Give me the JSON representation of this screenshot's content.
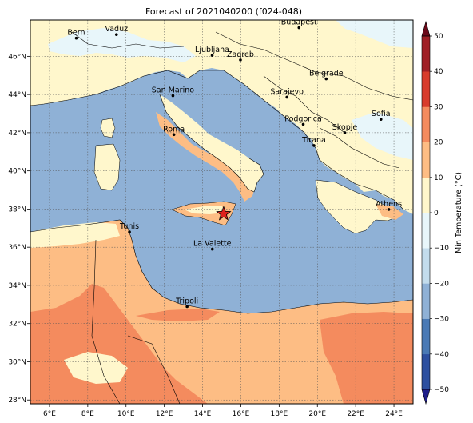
{
  "title": "Forecast of 2021040200 (f024-048)",
  "colorbar": {
    "label": "Min Temperature (°C)",
    "ticks": [
      "50",
      "40",
      "30",
      "20",
      "10",
      "0",
      "−10",
      "−20",
      "−30",
      "−40",
      "−50"
    ],
    "range": [
      -50,
      50
    ],
    "colors": [
      "#1f1f8a",
      "#2d50a0",
      "#4a7ab5",
      "#8fb1d6",
      "#c3dcec",
      "#e8f6fa",
      "#fff7cc",
      "#fdbd84",
      "#f48b5e",
      "#d83b2c",
      "#a01f26",
      "#6b0a1a"
    ]
  },
  "axes": {
    "lon_ticks": [
      "6°E",
      "8°E",
      "10°E",
      "12°E",
      "14°E",
      "16°E",
      "18°E",
      "20°E",
      "22°E",
      "24°E"
    ],
    "lat_ticks": [
      "46°N",
      "44°N",
      "42°N",
      "40°N",
      "38°N",
      "36°N",
      "34°N",
      "32°N",
      "30°N",
      "28°N"
    ],
    "lon_range": [
      5,
      25
    ],
    "lat_range": [
      27.8,
      47.9
    ],
    "grid": true
  },
  "cities": [
    {
      "name": "Bern",
      "lon": 7.4,
      "lat": 46.95
    },
    {
      "name": "Vaduz",
      "lon": 9.5,
      "lat": 47.14
    },
    {
      "name": "Budapest",
      "lon": 19.04,
      "lat": 47.5
    },
    {
      "name": "Ljubljana",
      "lon": 14.5,
      "lat": 46.05
    },
    {
      "name": "Zagreb",
      "lon": 15.98,
      "lat": 45.81
    },
    {
      "name": "Belgrade",
      "lon": 20.46,
      "lat": 44.82
    },
    {
      "name": "San Marino",
      "lon": 12.45,
      "lat": 43.94
    },
    {
      "name": "Sarajevo",
      "lon": 18.41,
      "lat": 43.86
    },
    {
      "name": "Sofia",
      "lon": 23.32,
      "lat": 42.7
    },
    {
      "name": "Podgorica",
      "lon": 19.26,
      "lat": 42.44
    },
    {
      "name": "Skopje",
      "lon": 21.43,
      "lat": 42.0
    },
    {
      "name": "Roma",
      "lon": 12.5,
      "lat": 41.9
    },
    {
      "name": "Tirana",
      "lon": 19.82,
      "lat": 41.33
    },
    {
      "name": "Athens",
      "lon": 23.73,
      "lat": 37.98
    },
    {
      "name": "Tunis",
      "lon": 10.18,
      "lat": 36.8
    },
    {
      "name": "La Valette",
      "lon": 14.51,
      "lat": 35.9
    },
    {
      "name": "Tripoli",
      "lon": 13.19,
      "lat": 32.89
    }
  ],
  "marker": {
    "icon": "star-icon",
    "lon": 15.1,
    "lat": 37.75,
    "color": "#e0201b"
  }
}
